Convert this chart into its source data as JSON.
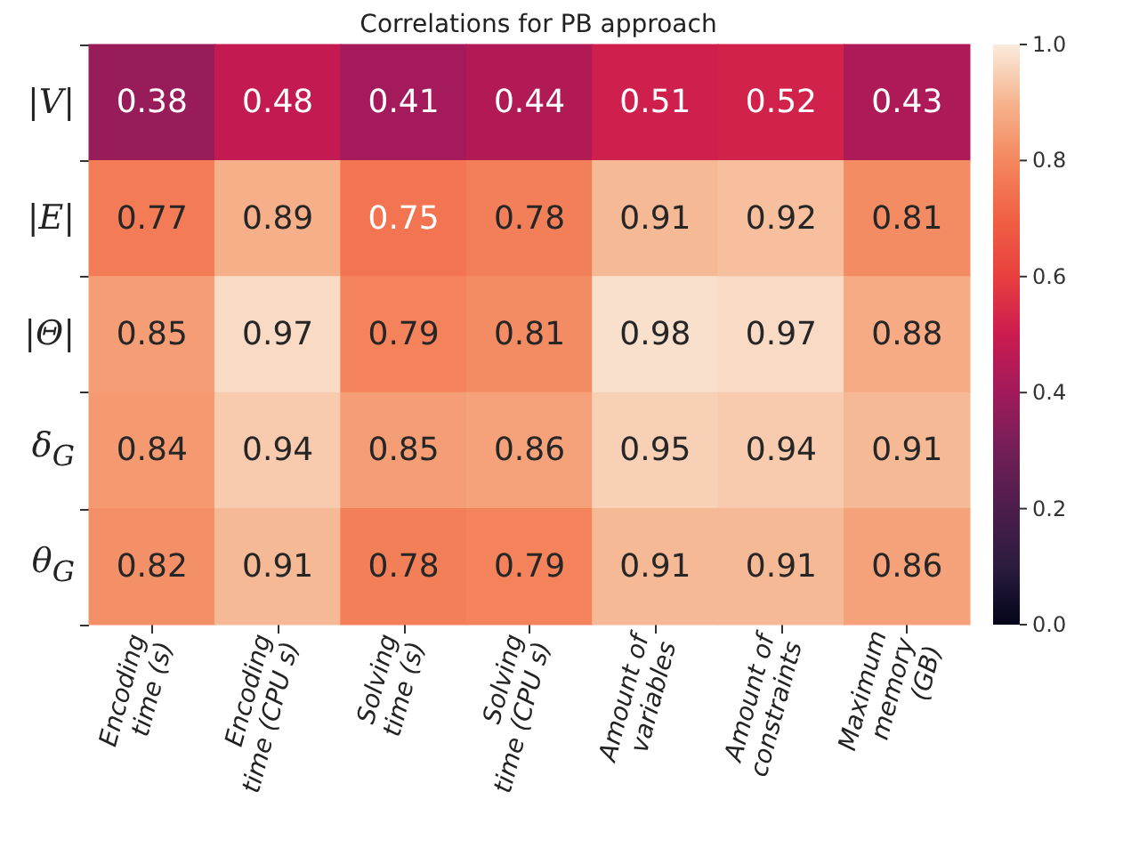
{
  "chart_data": {
    "type": "heatmap",
    "title": "Correlations for PB approach",
    "categories": [
      "Encoding\ntime (s)",
      "Encoding\ntime (CPU s)",
      "Solving\ntime (s)",
      "Solving\ntime (CPU s)",
      "Amount of\nvariables",
      "Amount of\nconstraints",
      "Maximum\nmemory\n(GB)"
    ],
    "y_categories": [
      "|V|",
      "|E|",
      "|Θ|",
      "δ$_{G}$",
      "θ$_{G}$"
    ],
    "cells": [
      [
        0.38,
        0.48,
        0.41,
        0.44,
        0.51,
        0.52,
        0.43
      ],
      [
        0.77,
        0.89,
        0.75,
        0.78,
        0.91,
        0.92,
        0.81
      ],
      [
        0.85,
        0.97,
        0.79,
        0.81,
        0.98,
        0.97,
        0.88
      ],
      [
        0.84,
        0.94,
        0.85,
        0.86,
        0.95,
        0.94,
        0.91
      ],
      [
        0.82,
        0.91,
        0.78,
        0.79,
        0.91,
        0.91,
        0.86
      ]
    ],
    "clim": [
      0,
      1
    ],
    "cticks": [
      {
        "value": 0,
        "label": "0.0"
      },
      {
        "value": 0.2,
        "label": "0.2"
      },
      {
        "value": 0.4,
        "label": "0.4"
      },
      {
        "value": 0.6,
        "label": "0.6"
      },
      {
        "value": 0.8,
        "label": "0.8"
      },
      {
        "value": 1,
        "label": "1.0"
      }
    ],
    "data_labels": true
  }
}
